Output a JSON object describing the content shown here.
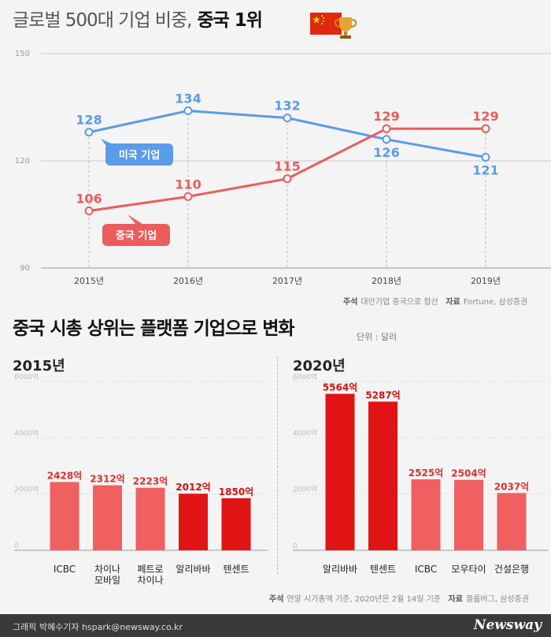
{
  "title": {
    "light": "글로벌 500대 기업 비중,",
    "bold": "중국 1위"
  },
  "chart_data": [
    {
      "type": "line",
      "x": [
        "2015년",
        "2016년",
        "2017년",
        "2018년",
        "2019년"
      ],
      "yticks": [
        150,
        120,
        90
      ],
      "ylim": [
        90,
        150
      ],
      "series": [
        {
          "name": "미국 기업",
          "values": [
            128,
            134,
            132,
            126,
            121
          ],
          "color": "#5b9be8"
        },
        {
          "name": "중국 기업",
          "values": [
            106,
            110,
            115,
            129,
            129
          ],
          "color": "#eb5c5c"
        }
      ]
    },
    {
      "type": "bar",
      "year": "2015년",
      "categories": [
        "ICBC",
        "차이나 모바일",
        "페트로 차이나",
        "알리바바",
        "텐센트"
      ],
      "category_lines": [
        [
          "ICBC"
        ],
        [
          "차이나",
          "모바일"
        ],
        [
          "페트로",
          "차이나"
        ],
        [
          "알리바바"
        ],
        [
          "텐센트"
        ]
      ],
      "values": [
        2428,
        2312,
        2223,
        2012,
        1850
      ],
      "labels": [
        "2428억",
        "2312억",
        "2223억",
        "2012억",
        "1850억"
      ],
      "platform": [
        false,
        false,
        false,
        true,
        true
      ],
      "yticks": [
        "6000억",
        "4000억",
        "2000억",
        "0"
      ],
      "ylim": [
        0,
        6000
      ]
    },
    {
      "type": "bar",
      "year": "2020년",
      "categories": [
        "알리바바",
        "텐센트",
        "ICBC",
        "모우타이",
        "건설은행"
      ],
      "category_lines": [
        [
          "알리바바"
        ],
        [
          "텐센트"
        ],
        [
          "ICBC"
        ],
        [
          "모우타이"
        ],
        [
          "건설은행"
        ]
      ],
      "values": [
        5564,
        5287,
        2525,
        2504,
        2037
      ],
      "labels": [
        "5564억",
        "5287억",
        "2525억",
        "2504억",
        "2037억"
      ],
      "platform": [
        true,
        true,
        false,
        false,
        false
      ],
      "yticks": [
        "6000억",
        "4000억",
        "2000억",
        "0"
      ],
      "ylim": [
        0,
        6000
      ]
    }
  ],
  "colors": {
    "platform_bar": "#e01414",
    "other_bar": "#f06060",
    "platform_label": "#d41010",
    "other_label": "#e03030"
  },
  "note1": {
    "k1": "주석",
    "v1": "대만기업 중국으로 합산",
    "k2": "자료",
    "v2": "Fortune, 삼성증권"
  },
  "section2_title": "중국 시총 상위는 플랫폼 기업으로 변화",
  "unit": "단위 : 달러",
  "year2015": "2015년",
  "year2020": "2020년",
  "note2": {
    "k1": "주석",
    "v1": "연말 시가총액 기준, 2020년은 2월 14일 기준",
    "k2": "자료",
    "v2": "블룸버그, 삼성증권"
  },
  "footer": {
    "credit": "그래픽 박혜수기자 hspark@newsway.co.kr",
    "logo": "Newsway"
  },
  "icons": {
    "flag": "china-flag-icon",
    "trophy": "trophy-icon"
  }
}
